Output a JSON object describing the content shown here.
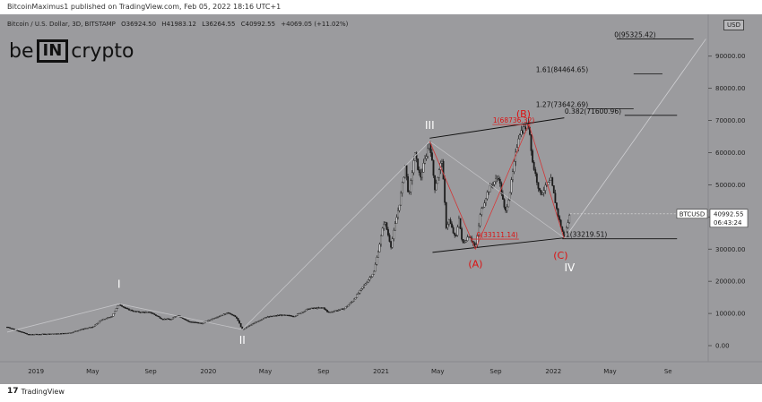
{
  "header": {
    "publisher": "BitcoinMaximus1 published on TradingView.com, Feb 05, 2022 18:16 UTC+1"
  },
  "ohlc": {
    "symbol": "Bitcoin / U.S. Dollar, 3D, BITSTAMP",
    "open": "O36924.50",
    "high": "H41983.12",
    "low": "L36264.55",
    "close": "C40992.55",
    "change": "+4069.05 (+11.02%)"
  },
  "logo": {
    "left": "be",
    "box": "IN",
    "right": "crypto"
  },
  "currency_badge": "USD",
  "footer": {
    "brand": "TradingView",
    "mark": "17"
  },
  "chart_data": {
    "type": "line",
    "title": "Bitcoin / U.S. Dollar, 3D, BITSTAMP",
    "xlabel": "",
    "ylabel": "",
    "x_range": [
      "2018-11-01",
      "2022-11-25"
    ],
    "ylim": [
      -5000,
      103000
    ],
    "y_ticks": [
      "0.00",
      "10000.00",
      "20000.00",
      "30000.00",
      "40000.00",
      "50000.00",
      "60000.00",
      "70000.00",
      "80000.00",
      "90000.00"
    ],
    "y_tick_values": [
      0,
      10000,
      20000,
      30000,
      40000,
      50000,
      60000,
      70000,
      80000,
      90000
    ],
    "x_ticks": [
      {
        "label": "2019",
        "date": "2019-01-01"
      },
      {
        "label": "May",
        "date": "2019-05-01"
      },
      {
        "label": "Sep",
        "date": "2019-09-01"
      },
      {
        "label": "2020",
        "date": "2020-01-01"
      },
      {
        "label": "May",
        "date": "2020-05-01"
      },
      {
        "label": "Sep",
        "date": "2020-09-01"
      },
      {
        "label": "2021",
        "date": "2021-01-01"
      },
      {
        "label": "May",
        "date": "2021-05-01"
      },
      {
        "label": "Sep",
        "date": "2021-09-01"
      },
      {
        "label": "2022",
        "date": "2022-01-01"
      },
      {
        "label": "May",
        "date": "2022-05-01"
      },
      {
        "label": "Se",
        "date": "2022-09-01"
      }
    ],
    "series": [
      {
        "values": [
          [
            "2018-11-01",
            5800
          ],
          [
            "2018-12-15",
            3500
          ],
          [
            "2019-01-15",
            3600
          ],
          [
            "2019-02-15",
            3700
          ],
          [
            "2019-03-15",
            4000
          ],
          [
            "2019-04-10",
            5200
          ],
          [
            "2019-05-01",
            5800
          ],
          [
            "2019-05-20",
            8000
          ],
          [
            "2019-06-10",
            9000
          ],
          [
            "2019-06-26",
            13000
          ],
          [
            "2019-07-10",
            11500
          ],
          [
            "2019-08-01",
            10500
          ],
          [
            "2019-09-01",
            10300
          ],
          [
            "2019-09-25",
            8300
          ],
          [
            "2019-10-15",
            8200
          ],
          [
            "2019-10-27",
            9500
          ],
          [
            "2019-11-20",
            7500
          ],
          [
            "2019-12-18",
            6900
          ],
          [
            "2020-01-15",
            8700
          ],
          [
            "2020-02-13",
            10300
          ],
          [
            "2020-03-01",
            8600
          ],
          [
            "2020-03-13",
            5000
          ],
          [
            "2020-04-01",
            6500
          ],
          [
            "2020-04-30",
            8800
          ],
          [
            "2020-06-01",
            9500
          ],
          [
            "2020-07-01",
            9200
          ],
          [
            "2020-08-01",
            11500
          ],
          [
            "2020-09-01",
            11800
          ],
          [
            "2020-09-10",
            10300
          ],
          [
            "2020-10-15",
            11500
          ],
          [
            "2020-11-01",
            13800
          ],
          [
            "2020-11-25",
            18500
          ],
          [
            "2020-12-17",
            23000
          ],
          [
            "2021-01-08",
            39000
          ],
          [
            "2021-01-22",
            31000
          ],
          [
            "2021-02-10",
            45000
          ],
          [
            "2021-02-21",
            56000
          ],
          [
            "2021-03-01",
            46000
          ],
          [
            "2021-03-13",
            60000
          ],
          [
            "2021-03-25",
            52000
          ],
          [
            "2021-04-14",
            63500
          ],
          [
            "2021-04-25",
            49000
          ],
          [
            "2021-05-10",
            58000
          ],
          [
            "2021-05-19",
            37000
          ],
          [
            "2021-05-25",
            39000
          ],
          [
            "2021-06-08",
            33000
          ],
          [
            "2021-06-15",
            40000
          ],
          [
            "2021-06-22",
            31500
          ],
          [
            "2021-07-07",
            34500
          ],
          [
            "2021-07-20",
            30000
          ],
          [
            "2021-07-31",
            41500
          ],
          [
            "2021-08-14",
            47500
          ],
          [
            "2021-08-23",
            50000
          ],
          [
            "2021-09-07",
            52500
          ],
          [
            "2021-09-21",
            41000
          ],
          [
            "2021-10-01",
            48000
          ],
          [
            "2021-10-20",
            66000
          ],
          [
            "2021-11-10",
            68800
          ],
          [
            "2021-11-18",
            57000
          ],
          [
            "2021-12-04",
            47000
          ],
          [
            "2021-12-27",
            51500
          ],
          [
            "2022-01-10",
            41000
          ],
          [
            "2022-01-24",
            33200
          ],
          [
            "2022-02-05",
            40992
          ]
        ]
      }
    ],
    "annotations": [
      {
        "text": "0(95325.42)",
        "value": 95325.42
      },
      {
        "text": "1.61(84464.65)",
        "value": 84464.65
      },
      {
        "text": "1.27(73642.69)",
        "value": 73642.69
      },
      {
        "text": "0.382(71600.96)",
        "value": 71600.96
      },
      {
        "text": "1(68736.32)",
        "value": 68736.32
      },
      {
        "text": "0(33111.14)",
        "value": 33111.14
      },
      {
        "text": "1(33219.51)",
        "value": 33219.51
      }
    ],
    "wave_labels": [
      {
        "text": "I",
        "date": "2019-06-26"
      },
      {
        "text": "II",
        "date": "2020-03-13"
      },
      {
        "text": "III",
        "date": "2021-04-14"
      },
      {
        "text": "IV",
        "date": "2022-01-24"
      },
      {
        "text": "(A)",
        "date": "2021-07-20"
      },
      {
        "text": "(B)",
        "date": "2021-11-10"
      },
      {
        "text": "(C)",
        "date": "2022-01-24"
      }
    ],
    "last_price": {
      "symbol": "BTCUSD",
      "price": "40992.55",
      "countdown": "06:43:24"
    },
    "colors": {
      "background": "#9b9b9e",
      "candles": "#1a1a1a",
      "channel": "#111111",
      "wave_lines": "#d23434",
      "projection": "#cfcfd2"
    }
  }
}
